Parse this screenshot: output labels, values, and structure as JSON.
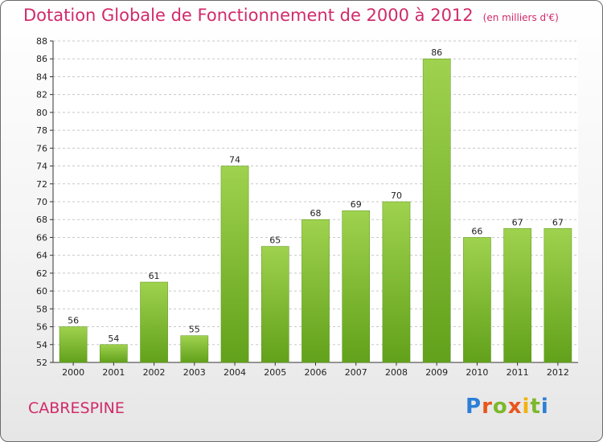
{
  "chart_data": {
    "type": "bar",
    "title": "Dotation Globale de Fonctionnement de 2000 à 2012",
    "subtitle": "(en milliers d'€)",
    "categories": [
      "2000",
      "2001",
      "2002",
      "2003",
      "2004",
      "2005",
      "2006",
      "2007",
      "2008",
      "2009",
      "2010",
      "2011",
      "2012"
    ],
    "values": [
      56,
      54,
      61,
      55,
      74,
      65,
      68,
      69,
      70,
      86,
      66,
      67,
      67
    ],
    "ylim": [
      52,
      88
    ],
    "yticks": [
      52,
      54,
      56,
      58,
      60,
      62,
      64,
      66,
      68,
      70,
      72,
      74,
      76,
      78,
      80,
      82,
      84,
      86,
      88
    ],
    "grid": true,
    "bar_color": "#7cb82a",
    "xlabel": "",
    "ylabel": ""
  },
  "footer": {
    "commune": "CABRESPINE",
    "logo": [
      "P",
      "r",
      "o",
      "x",
      "i",
      "t",
      "i"
    ],
    "logo_colors": [
      "#2c7fd6",
      "#e8561c",
      "#7cb82a",
      "#e8561c",
      "#f2b20e",
      "#7cb82a",
      "#2c7fd6"
    ]
  },
  "colors": {
    "accent": "#d12a6a"
  }
}
